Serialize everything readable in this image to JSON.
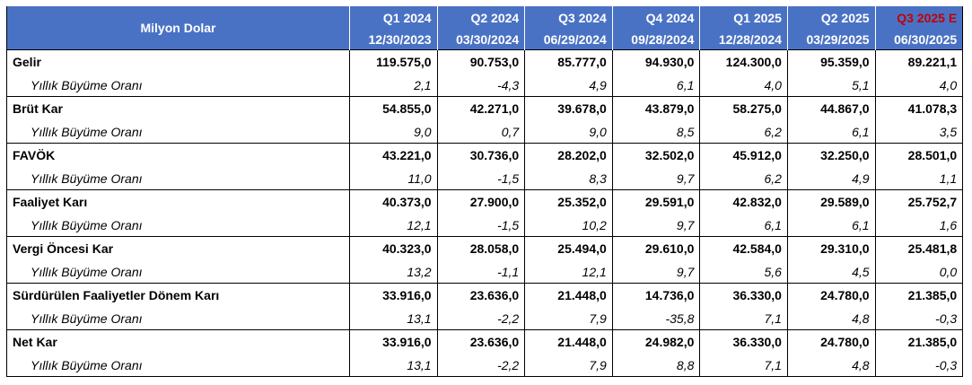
{
  "header": {
    "label": "Milyon Dolar",
    "columns": [
      {
        "quarter": "Q1 2024",
        "date": "12/30/2023",
        "estimate": false
      },
      {
        "quarter": "Q2 2024",
        "date": "03/30/2024",
        "estimate": false
      },
      {
        "quarter": "Q3 2024",
        "date": "06/29/2024",
        "estimate": false
      },
      {
        "quarter": "Q4 2024",
        "date": "09/28/2024",
        "estimate": false
      },
      {
        "quarter": "Q1 2025",
        "date": "12/28/2024",
        "estimate": false
      },
      {
        "quarter": "Q2 2025",
        "date": "03/29/2025",
        "estimate": false
      },
      {
        "quarter": "Q3 2025 E",
        "date": "06/30/2025",
        "estimate": true
      }
    ]
  },
  "colors": {
    "header_bg": "#4a72c4",
    "header_text": "#ffffff",
    "estimate_text": "#c00000"
  },
  "rows": [
    {
      "label": "Gelir",
      "values": [
        "119.575,0",
        "90.753,0",
        "85.777,0",
        "94.930,0",
        "124.300,0",
        "95.359,0",
        "89.221,1"
      ],
      "growth_label": "Yıllık Büyüme Oranı",
      "growth": [
        "2,1",
        "-4,3",
        "4,9",
        "6,1",
        "4,0",
        "5,1",
        "4,0"
      ]
    },
    {
      "label": "Brüt Kar",
      "values": [
        "54.855,0",
        "42.271,0",
        "39.678,0",
        "43.879,0",
        "58.275,0",
        "44.867,0",
        "41.078,3"
      ],
      "growth_label": "Yıllık Büyüme Oranı",
      "growth": [
        "9,0",
        "0,7",
        "9,0",
        "8,5",
        "6,2",
        "6,1",
        "3,5"
      ]
    },
    {
      "label": "FAVÖK",
      "values": [
        "43.221,0",
        "30.736,0",
        "28.202,0",
        "32.502,0",
        "45.912,0",
        "32.250,0",
        "28.501,0"
      ],
      "growth_label": "Yıllık Büyüme Oranı",
      "growth": [
        "11,0",
        "-1,5",
        "8,3",
        "9,7",
        "6,2",
        "4,9",
        "1,1"
      ]
    },
    {
      "label": "Faaliyet Karı",
      "values": [
        "40.373,0",
        "27.900,0",
        "25.352,0",
        "29.591,0",
        "42.832,0",
        "29.589,0",
        "25.752,7"
      ],
      "growth_label": "Yıllık Büyüme Oranı",
      "growth": [
        "12,1",
        "-1,5",
        "10,2",
        "9,7",
        "6,1",
        "6,1",
        "1,6"
      ]
    },
    {
      "label": "Vergi Öncesi Kar",
      "values": [
        "40.323,0",
        "28.058,0",
        "25.494,0",
        "29.610,0",
        "42.584,0",
        "29.310,0",
        "25.481,8"
      ],
      "growth_label": "Yıllık Büyüme Oranı",
      "growth": [
        "13,2",
        "-1,1",
        "12,1",
        "9,7",
        "5,6",
        "4,5",
        "0,0"
      ]
    },
    {
      "label": "Sürdürülen Faaliyetler Dönem Karı",
      "values": [
        "33.916,0",
        "23.636,0",
        "21.448,0",
        "14.736,0",
        "36.330,0",
        "24.780,0",
        "21.385,0"
      ],
      "growth_label": "Yıllık Büyüme Oranı",
      "growth": [
        "13,1",
        "-2,2",
        "7,9",
        "-35,8",
        "7,1",
        "4,8",
        "-0,3"
      ]
    },
    {
      "label": "Net Kar",
      "values": [
        "33.916,0",
        "23.636,0",
        "21.448,0",
        "24.982,0",
        "36.330,0",
        "24.780,0",
        "21.385,0"
      ],
      "growth_label": "Yıllık Büyüme Oranı",
      "growth": [
        "13,1",
        "-2,2",
        "7,9",
        "8,8",
        "7,1",
        "4,8",
        "-0,3"
      ]
    }
  ]
}
